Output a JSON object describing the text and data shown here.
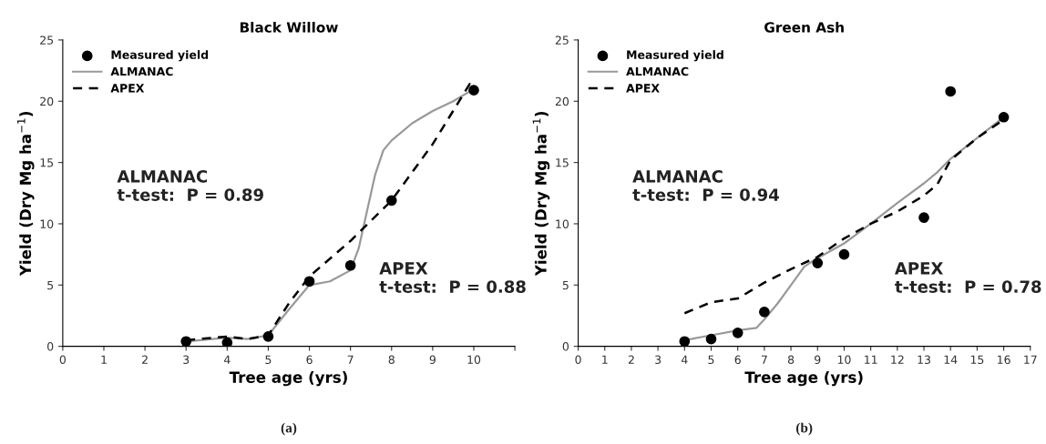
{
  "chart_data": [
    {
      "type": "line",
      "title": "Black Willow",
      "xlabel": "Tree age (yrs)",
      "ylabel": "Yield (Dry Mg ha$^{−1}$)",
      "xlim": [
        0,
        11
      ],
      "xticks": [
        0,
        1,
        2,
        3,
        4,
        5,
        6,
        7,
        8,
        9,
        10,
        {
          "value": 11,
          "label": null
        }
      ],
      "ylim": [
        0,
        25
      ],
      "yticks": [
        0,
        5,
        10,
        15,
        20,
        25
      ],
      "grid": false,
      "legend": "top left",
      "annotations": [
        "ALMANAC\nt-test:  P = 0.89",
        "APEX\nt-test:  P = 0.88",
        "(a)"
      ],
      "series": [
        {
          "name": "Measured yield",
          "type": "scatter",
          "marker": "circle",
          "color": "#000000",
          "x": [
            3,
            4,
            5,
            6,
            7,
            8,
            10
          ],
          "values": [
            0.4,
            0.3,
            0.8,
            5.3,
            6.6,
            11.9,
            20.9
          ]
        },
        {
          "name": "ALMANAC",
          "line_style": "solid",
          "color": "#999999",
          "x": [
            3,
            4,
            4.5,
            5,
            5.5,
            6,
            6.5,
            7,
            7.2,
            7.4,
            7.6,
            7.8,
            8,
            8.5,
            9,
            9.5,
            10
          ],
          "values": [
            0.4,
            0.7,
            0.6,
            0.9,
            3,
            5.0,
            5.3,
            6.2,
            8,
            11,
            14,
            16,
            16.8,
            18.2,
            19.2,
            20,
            21
          ]
        },
        {
          "name": "APEX",
          "line_style": "dashed",
          "color": "#000000",
          "x": [
            3,
            4,
            4.5,
            5,
            5.5,
            6,
            7,
            8,
            9,
            9.9,
            10
          ],
          "values": [
            0.5,
            0.8,
            0.6,
            0.9,
            3.5,
            5.7,
            8.6,
            11.9,
            16.5,
            21.4,
            21
          ]
        }
      ]
    },
    {
      "type": "line",
      "title": "Green Ash",
      "xlabel": "Tree age (yrs)",
      "ylabel": "Yield (Dry Mg ha$^{−1}$)",
      "xlim": [
        0,
        17
      ],
      "xticks": [
        0,
        1,
        2,
        3,
        4,
        5,
        6,
        7,
        8,
        9,
        10,
        11,
        12,
        13,
        14,
        15,
        16,
        17
      ],
      "ylim": [
        0,
        25
      ],
      "yticks": [
        0,
        5,
        10,
        15,
        20,
        25
      ],
      "grid": false,
      "legend": "top left",
      "annotations": [
        "ALMANAC\nt-test:  P = 0.94",
        "APEX\nt-test:  P = 0.78",
        "(b)"
      ],
      "series": [
        {
          "name": "Measured yield",
          "type": "scatter",
          "marker": "circle",
          "color": "#000000",
          "x": [
            4,
            5,
            6,
            7,
            9,
            10,
            13,
            14,
            16
          ],
          "values": [
            0.4,
            0.6,
            1.1,
            2.8,
            6.8,
            7.5,
            10.5,
            20.8,
            18.7
          ]
        },
        {
          "name": "ALMANAC",
          "line_style": "solid",
          "color": "#999999",
          "x": [
            4,
            5,
            6,
            6.7,
            7,
            7.5,
            8,
            8.5,
            9,
            10,
            11,
            12,
            13,
            13.5,
            14,
            15,
            16
          ],
          "values": [
            0.5,
            0.9,
            1.3,
            1.5,
            2.2,
            3.5,
            5,
            6.5,
            7.2,
            8.4,
            10,
            11.7,
            13.3,
            14.2,
            15.3,
            17,
            18.7
          ]
        },
        {
          "name": "APEX",
          "line_style": "dashed",
          "color": "#000000",
          "x": [
            4,
            5,
            6,
            7,
            8,
            9,
            10,
            11,
            12,
            13,
            13.5,
            14,
            15,
            16
          ],
          "values": [
            2.7,
            3.6,
            3.9,
            5.2,
            6.3,
            7.3,
            8.8,
            10,
            11.0,
            12.3,
            13.2,
            15.2,
            17,
            18.5
          ]
        }
      ]
    }
  ]
}
